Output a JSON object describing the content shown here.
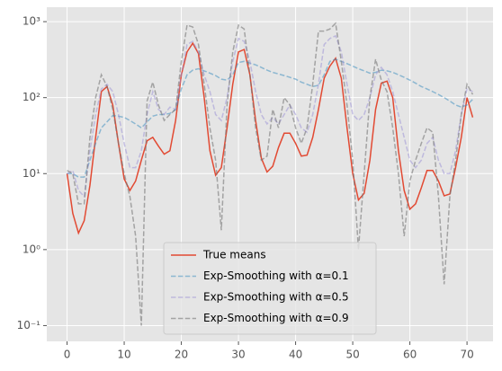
{
  "chart_data": {
    "type": "line",
    "log_y": true,
    "grid": true,
    "legend": "lower center",
    "x": [
      0,
      1,
      2,
      3,
      4,
      5,
      6,
      7,
      8,
      9,
      10,
      11,
      12,
      13,
      14,
      15,
      16,
      17,
      18,
      19,
      20,
      21,
      22,
      23,
      24,
      25,
      26,
      27,
      28,
      29,
      30,
      31,
      32,
      33,
      34,
      35,
      36,
      37,
      38,
      39,
      40,
      41,
      42,
      43,
      44,
      45,
      46,
      47,
      48,
      49,
      50,
      51,
      52,
      53,
      54,
      55,
      56,
      57,
      58,
      59,
      60,
      61,
      62,
      63,
      64,
      65,
      66,
      67,
      68,
      69,
      70,
      71
    ],
    "xlim": [
      -3.55,
      74.55
    ],
    "xticks": [
      0,
      10,
      20,
      30,
      40,
      50,
      60,
      70
    ],
    "ylim": [
      0.062,
      1550
    ],
    "yticks": [
      {
        "value": 0.1,
        "label": "10⁻¹"
      },
      {
        "value": 1,
        "label": "10⁰"
      },
      {
        "value": 10,
        "label": "10¹"
      },
      {
        "value": 100,
        "label": "10²"
      },
      {
        "value": 1000,
        "label": "10³"
      }
    ],
    "series": [
      {
        "name": "True means",
        "color": "#E24A33",
        "opacity": 1,
        "dashed": false,
        "values": [
          10,
          3,
          1.65,
          2.4,
          7,
          30,
          120,
          140,
          80,
          25,
          8.5,
          6,
          8,
          15,
          27,
          30,
          23,
          18,
          20,
          50,
          200,
          400,
          520,
          380,
          100,
          20,
          9.5,
          12,
          40,
          150,
          400,
          430,
          200,
          50,
          16,
          10.5,
          12.5,
          22,
          34,
          34,
          25,
          17,
          17.5,
          30,
          70,
          180,
          260,
          330,
          180,
          40,
          10,
          4.5,
          5.5,
          15,
          70,
          155,
          165,
          100,
          20,
          6,
          3.4,
          4,
          6.5,
          11,
          11,
          8,
          5.1,
          5.4,
          12,
          30,
          100,
          55
        ]
      },
      {
        "name": "Exp-Smoothing with α=0.1",
        "color": "#348ABD",
        "opacity": 0.5,
        "dashed": true,
        "values": [
          10,
          10,
          9,
          9,
          15,
          25,
          40,
          48,
          58,
          57,
          55,
          50,
          45,
          40,
          48,
          57,
          60,
          60,
          62,
          70,
          130,
          200,
          230,
          240,
          225,
          210,
          195,
          175,
          170,
          200,
          290,
          300,
          285,
          270,
          250,
          230,
          215,
          205,
          195,
          185,
          175,
          160,
          150,
          140,
          145,
          200,
          300,
          320,
          300,
          280,
          260,
          240,
          225,
          210,
          215,
          230,
          225,
          215,
          200,
          185,
          170,
          155,
          140,
          130,
          120,
          110,
          100,
          90,
          80,
          75,
          80,
          95
        ]
      },
      {
        "name": "Exp-Smoothing with α=0.5",
        "color": "#988ED5",
        "opacity": 0.5,
        "dashed": true,
        "values": [
          10,
          11,
          6,
          5,
          20,
          60,
          130,
          150,
          120,
          60,
          25,
          12,
          12,
          20,
          60,
          120,
          70,
          60,
          75,
          70,
          200,
          500,
          550,
          400,
          200,
          120,
          60,
          50,
          100,
          300,
          600,
          550,
          300,
          120,
          60,
          45,
          55,
          45,
          60,
          80,
          60,
          40,
          35,
          60,
          150,
          500,
          600,
          650,
          400,
          150,
          60,
          50,
          60,
          100,
          200,
          250,
          200,
          120,
          60,
          30,
          15,
          12,
          15,
          25,
          30,
          15,
          10,
          10,
          20,
          60,
          130,
          120
        ]
      },
      {
        "name": "Exp-Smoothing with α=0.9",
        "color": "#777777",
        "opacity": 0.6,
        "dashed": true,
        "values": [
          11,
          10,
          4,
          4,
          30,
          100,
          200,
          140,
          70,
          25,
          10,
          5,
          1.5,
          0.1,
          90,
          160,
          80,
          50,
          60,
          70,
          300,
          900,
          850,
          500,
          150,
          40,
          15,
          1.8,
          80,
          400,
          900,
          800,
          200,
          40,
          15,
          17,
          70,
          40,
          100,
          80,
          40,
          25,
          40,
          150,
          750,
          750,
          800,
          950,
          300,
          80,
          15,
          1.0,
          10,
          100,
          320,
          170,
          120,
          40,
          10,
          1.5,
          8,
          15,
          25,
          40,
          35,
          5,
          0.35,
          5,
          15,
          60,
          150,
          110
        ]
      }
    ]
  }
}
